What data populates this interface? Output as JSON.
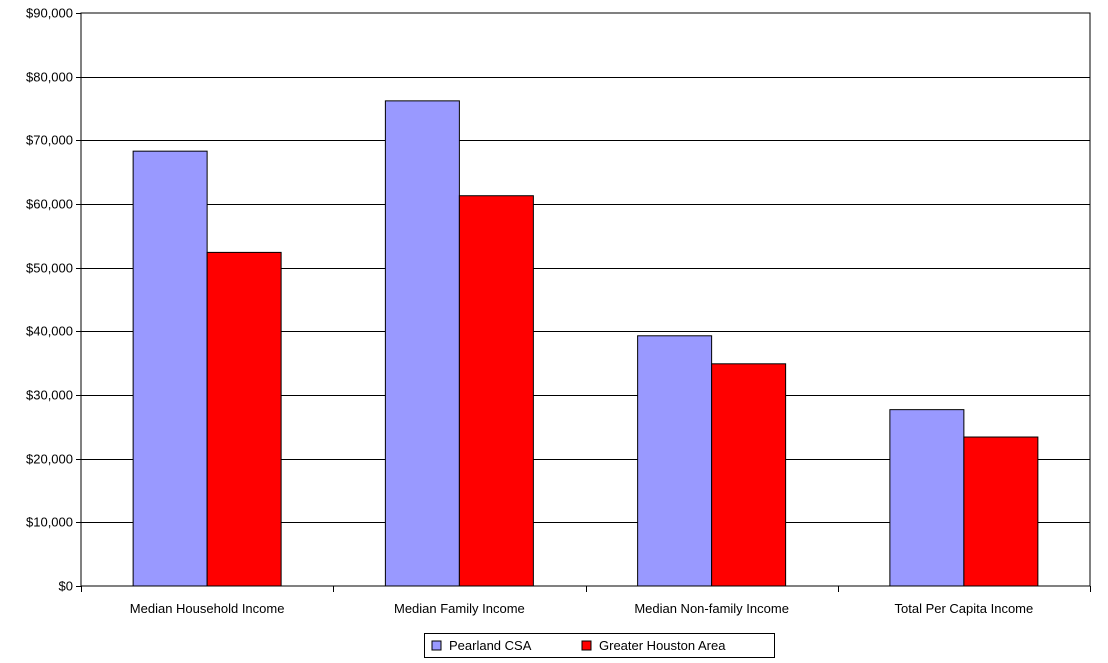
{
  "chart_data": {
    "type": "bar",
    "categories": [
      "Median Household Income",
      "Median Family Income",
      "Median Non-family Income",
      "Total Per Capita Income"
    ],
    "series": [
      {
        "name": "Pearland CSA",
        "color": "#9999FF",
        "values": [
          68300,
          76200,
          39300,
          27700
        ]
      },
      {
        "name": "Greater Houston Area",
        "color": "#FF0000",
        "values": [
          52400,
          61300,
          34900,
          23400
        ]
      }
    ],
    "ylim": [
      0,
      90000
    ],
    "yticks": [
      0,
      10000,
      20000,
      30000,
      40000,
      50000,
      60000,
      70000,
      80000,
      90000
    ],
    "ytick_labels": [
      "$0",
      "$10,000",
      "$20,000",
      "$30,000",
      "$40,000",
      "$50,000",
      "$60,000",
      "$70,000",
      "$80,000",
      "$90,000"
    ],
    "grid": true,
    "legend_position": "bottom",
    "title": "",
    "xlabel": "",
    "ylabel": ""
  }
}
